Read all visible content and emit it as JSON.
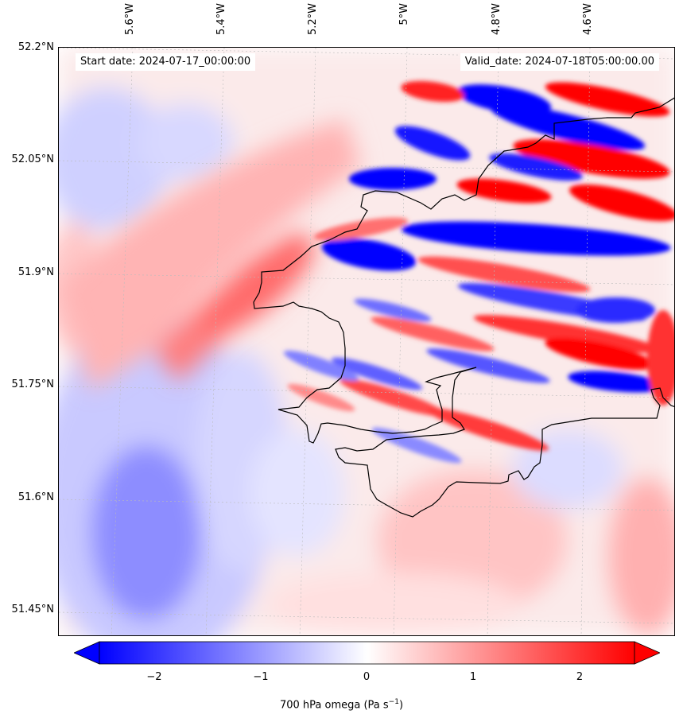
{
  "annotations": {
    "start_date": "Start date: 2024-07-17_00:00:00",
    "valid_date": "Valid_date: 2024-07-18T05:00:00.00"
  },
  "latitude_labels": [
    "52.2°N",
    "52.05°N",
    "51.9°N",
    "51.75°N",
    "51.6°N",
    "51.45°N"
  ],
  "longitude_labels": [
    "5.6°W",
    "5.4°W",
    "5.2°W",
    "5°W",
    "4.8°W",
    "4.6°W"
  ],
  "colorbar": {
    "ticks": [
      "−2",
      "−1",
      "0",
      "1",
      "2"
    ],
    "label_prefix": "700 hPa omega (Pa s",
    "label_exponent": "−1",
    "label_suffix": ")",
    "min_color": "#0000ff",
    "mid_color": "#ffffff",
    "max_color": "#ff0000",
    "range": [
      -2.5,
      2.5
    ],
    "extend": "both"
  },
  "colors": {
    "coastline": "#000000",
    "gridline": "#bbbbbb"
  }
}
